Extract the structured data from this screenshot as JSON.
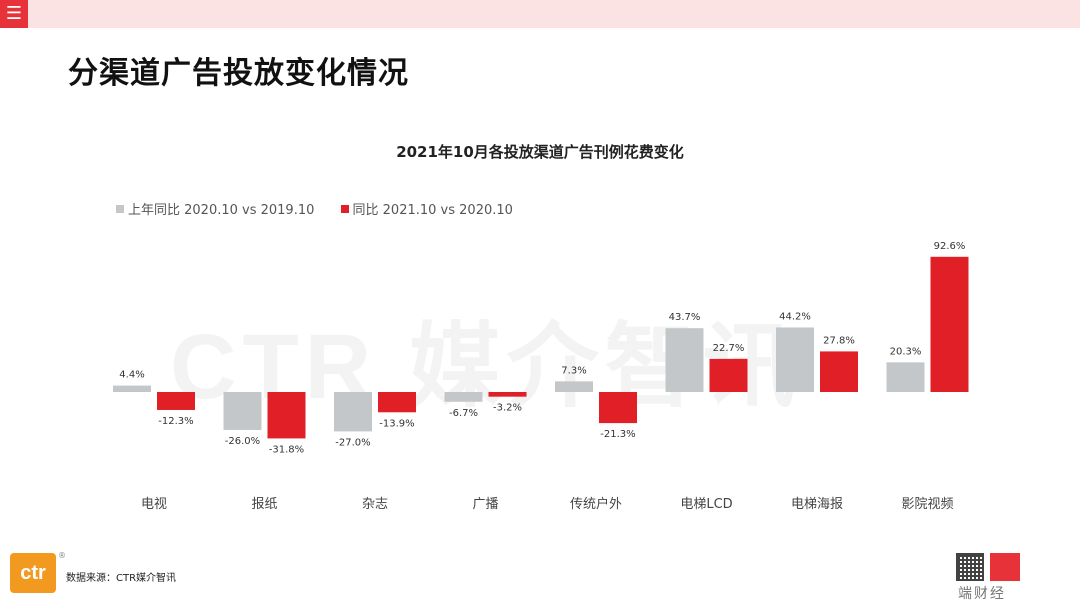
{
  "menu_icon": "☰",
  "page_title": "分渠道广告投放变化情况",
  "watermark": "CTR 媒介智讯",
  "source": "数据来源：CTR媒介智讯",
  "logo_text": "ctr",
  "logo_reg": "®",
  "brand_text": "端财经",
  "colors": {
    "series1": "#c3c7c9",
    "series2": "#e01f26",
    "accent": "#e8323a"
  },
  "chart_data": {
    "type": "bar",
    "title": "2021年10月各投放渠道广告刊例花费变化",
    "categories": [
      "电视",
      "报纸",
      "杂志",
      "广播",
      "传统户外",
      "电梯LCD",
      "电梯海报",
      "影院视频"
    ],
    "series": [
      {
        "name": "上年同比 2020.10 vs 2019.10",
        "values": [
          4.4,
          -26.0,
          -27.0,
          -6.7,
          7.3,
          43.7,
          44.2,
          20.3
        ],
        "labels": [
          "4.4%",
          "-26.0%",
          "-27.0%",
          "-6.7%",
          "7.3%",
          "43.7%",
          "44.2%",
          "20.3%"
        ]
      },
      {
        "name": "同比 2021.10 vs 2020.10",
        "values": [
          -12.3,
          -31.8,
          -13.9,
          -3.2,
          -21.3,
          22.7,
          27.8,
          92.6
        ],
        "labels": [
          "-12.3%",
          "-31.8%",
          "-13.9%",
          "-3.2%",
          "-21.3%",
          "22.7%",
          "27.8%",
          "92.6%"
        ]
      }
    ],
    "legend_position": "top-left",
    "grid": false
  }
}
